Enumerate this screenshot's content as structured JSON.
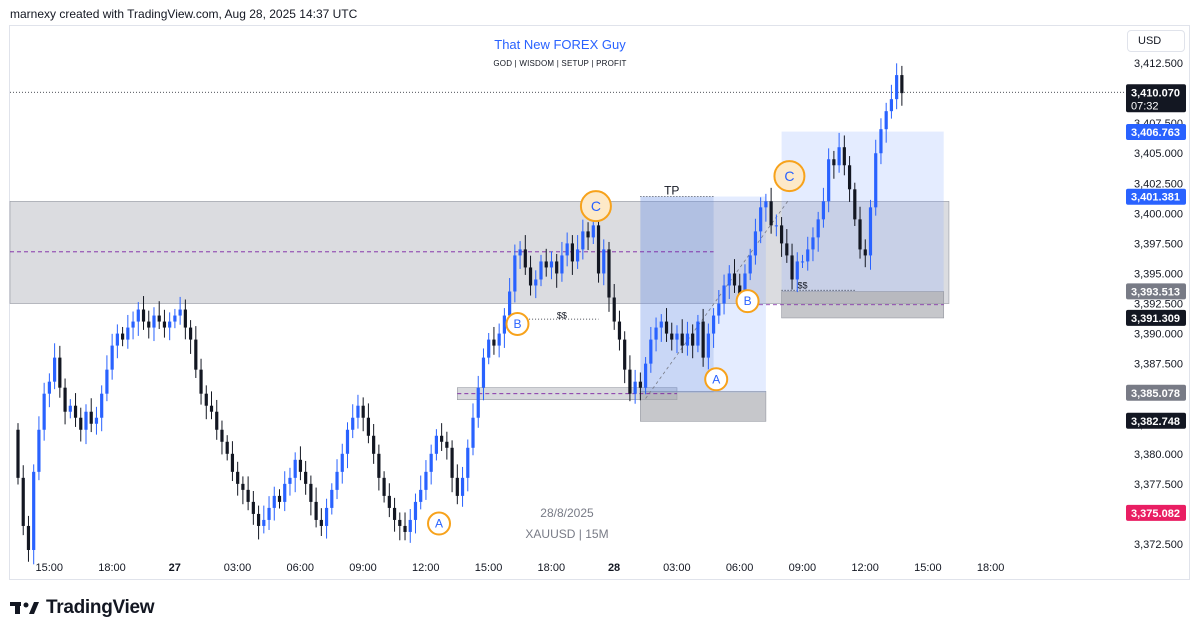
{
  "header": {
    "created_text": "marnexy created with TradingView.com, Aug 28, 2025 14:37 UTC"
  },
  "chart_title": "That New FOREX Guy",
  "chart_subtitle": "GOD | WISDOM | SETUP | PROFIT",
  "currency_button": "USD",
  "watermark": {
    "date": "28/8/2025",
    "symbol": "XAUUSD | 15M"
  },
  "footer": {
    "brand": "TradingView"
  },
  "colors": {
    "up": "#2962ff",
    "down": "#131722",
    "zone": "#d1d4dc",
    "accent": "#f7a21b",
    "price_line": "#e91e63"
  },
  "chart_data": {
    "type": "candlestick",
    "symbol": "XAUUSD",
    "timeframe": "15M",
    "ylim": [
      3371.5,
      3415.5
    ],
    "y_ticks": [
      3372.5,
      3375.0,
      3377.5,
      3380.0,
      3382.5,
      3385.0,
      3387.5,
      3390.0,
      3392.5,
      3395.0,
      3397.5,
      3400.0,
      3402.5,
      3405.0,
      3407.5,
      3410.0,
      3412.5
    ],
    "y_tick_labels": [
      "3,372.500",
      "3,375.000",
      "3,377.500",
      "3,380.000",
      "3,382.500",
      "3,385.000",
      "3,387.500",
      "3,390.000",
      "3,392.500",
      "3,395.000",
      "3,397.500",
      "3,400.000",
      "3,402.500",
      "3,405.000",
      "3,407.500",
      "3,410.000",
      "3,412.500"
    ],
    "x_ticks": [
      {
        "label": "15:00",
        "slot": 1.0
      },
      {
        "label": "18:00",
        "slot": 13.0
      },
      {
        "label": "27",
        "slot": 25.0
      },
      {
        "label": "03:00",
        "slot": 37.0
      },
      {
        "label": "06:00",
        "slot": 49.0
      },
      {
        "label": "09:00",
        "slot": 61.0
      },
      {
        "label": "12:00",
        "slot": 73.0
      },
      {
        "label": "15:00",
        "slot": 85.0
      },
      {
        "label": "18:00",
        "slot": 97.0
      },
      {
        "label": "28",
        "slot": 109.0
      },
      {
        "label": "03:00",
        "slot": 121.0
      },
      {
        "label": "06:00",
        "slot": 133.0
      },
      {
        "label": "09:00",
        "slot": 145.0
      },
      {
        "label": "12:00",
        "slot": 157.0
      },
      {
        "label": "15:00",
        "slot": 169.0
      },
      {
        "label": "18:00",
        "slot": 181.0
      }
    ],
    "candles_close": [
      3378.0,
      3374.0,
      3372.0,
      3378.5,
      3382.0,
      3385.0,
      3386.0,
      3388.0,
      3385.5,
      3383.5,
      3384.0,
      3383.0,
      3382.0,
      3383.5,
      3382.5,
      3383.0,
      3385.0,
      3387.0,
      3389.0,
      3390.0,
      3389.5,
      3390.5,
      3391.0,
      3392.0,
      3391.0,
      3390.5,
      3391.5,
      3391.0,
      3390.5,
      3391.0,
      3391.5,
      3392.0,
      3390.5,
      3389.5,
      3387.0,
      3385.0,
      3384.0,
      3383.5,
      3382.0,
      3381.0,
      3380.0,
      3378.5,
      3377.5,
      3377.0,
      3376.0,
      3375.0,
      3374.0,
      3374.5,
      3375.5,
      3376.5,
      3376.0,
      3377.5,
      3378.0,
      3379.5,
      3378.5,
      3377.5,
      3376.0,
      3374.5,
      3374.0,
      3375.5,
      3377.0,
      3378.5,
      3380.0,
      3382.0,
      3383.0,
      3384.0,
      3383.0,
      3381.5,
      3380.0,
      3378.0,
      3376.5,
      3375.5,
      3374.5,
      3374.0,
      3373.5,
      3374.5,
      3376.0,
      3377.0,
      3378.5,
      3380.0,
      3381.5,
      3381.0,
      3380.5,
      3378.0,
      3376.5,
      3378.0,
      3380.5,
      3383.0,
      3385.5,
      3388.0,
      3389.5,
      3389.0,
      3390.0,
      3391.5,
      3393.5,
      3396.5,
      3397.0,
      3395.5,
      3394.0,
      3394.5,
      3396.0,
      3395.5,
      3396.0,
      3395.0,
      3396.5,
      3397.5,
      3396.0,
      3397.0,
      3398.5,
      3398.0,
      3399.0,
      3395.0,
      3397.0,
      3393.0,
      3391.0,
      3389.5,
      3387.0,
      3385.0,
      3386.0,
      3385.5,
      3387.5,
      3389.5,
      3390.5,
      3391.0,
      3390.0,
      3389.5,
      3390.0,
      3389.0,
      3390.0,
      3389.0,
      3391.0,
      3388.0,
      3390.0,
      3391.5,
      3392.5,
      3394.0,
      3395.0,
      3394.0,
      3393.0,
      3395.0,
      3396.5,
      3398.5,
      3400.5,
      3401.0,
      3399.0,
      3399.0,
      3397.5,
      3396.5,
      3394.5,
      3396.0,
      3396.0,
      3397.0,
      3398.0,
      3399.5,
      3401.0,
      3404.5,
      3404.0,
      3405.5,
      3404.0,
      3402.0,
      3399.5,
      3397.0,
      3396.5,
      3400.5,
      3405.0,
      3407.0,
      3408.5,
      3409.5,
      3411.5,
      3410.0
    ],
    "annotations": {
      "wave_labels": [
        {
          "text": "A",
          "slot": 80.5,
          "price": 3374.2
        },
        {
          "text": "B",
          "slot": 95.5,
          "price": 3390.8
        },
        {
          "text": "C",
          "slot": 110.5,
          "price": 3400.6
        },
        {
          "text": "A",
          "slot": 133.5,
          "price": 3386.2
        },
        {
          "text": "B",
          "slot": 139.5,
          "price": 3392.7
        },
        {
          "text": "C",
          "slot": 147.5,
          "price": 3403.1
        }
      ],
      "tp_label": "TP",
      "liquidity_labels": [
        {
          "text": "$$",
          "slot": 104.0,
          "price": 3391.5
        },
        {
          "text": "$$",
          "slot": 150.0,
          "price": 3394.0
        }
      ],
      "zones": [
        {
          "name": "gray-supply",
          "from_slot": 0,
          "to_slot": 178,
          "top": 3401.0,
          "bottom": 3392.5
        },
        {
          "name": "gray-demand-small",
          "from_slot": 84,
          "to_slot": 126,
          "top": 3385.5,
          "bottom": 3384.5
        },
        {
          "name": "gray-demand",
          "from_slot": 119,
          "to_slot": 143,
          "top": 3385.2,
          "bottom": 3382.7
        },
        {
          "name": "gray-demand-upper",
          "from_slot": 146,
          "to_slot": 177,
          "top": 3393.5,
          "bottom": 3391.3
        }
      ],
      "blue_zones": [
        {
          "name": "long-target",
          "from_slot": 119,
          "to_slot": 133,
          "top": 3401.4,
          "bottom": 3385.1,
          "shade": "dark"
        },
        {
          "name": "long-range",
          "from_slot": 133,
          "to_slot": 143,
          "top": 3401.4,
          "bottom": 3385.1,
          "shade": "light"
        },
        {
          "name": "long-range-2",
          "from_slot": 146,
          "to_slot": 177,
          "top": 3406.8,
          "bottom": 3393.5,
          "shade": "light"
        }
      ]
    },
    "price_labels": [
      {
        "text": "3,410.070",
        "sub": "07:32",
        "price": 3410.07,
        "bg": "#131722",
        "fg": "#ffffff"
      },
      {
        "text": "3,406.763",
        "price": 3406.763,
        "bg": "#2962ff",
        "fg": "#ffffff"
      },
      {
        "text": "3,401.381",
        "price": 3401.381,
        "bg": "#2962ff",
        "fg": "#ffffff"
      },
      {
        "text": "3,393.513",
        "price": 3393.513,
        "bg": "#787b86",
        "fg": "#ffffff"
      },
      {
        "text": "3,391.309",
        "price": 3391.309,
        "bg": "#131722",
        "fg": "#ffffff"
      },
      {
        "text": "3,385.078",
        "price": 3385.078,
        "bg": "#787b86",
        "fg": "#ffffff"
      },
      {
        "text": "3,382.748",
        "price": 3382.748,
        "bg": "#131722",
        "fg": "#ffffff"
      },
      {
        "text": "3,375.082",
        "price": 3375.082,
        "bg": "#e91e63",
        "fg": "#ffffff"
      }
    ]
  }
}
